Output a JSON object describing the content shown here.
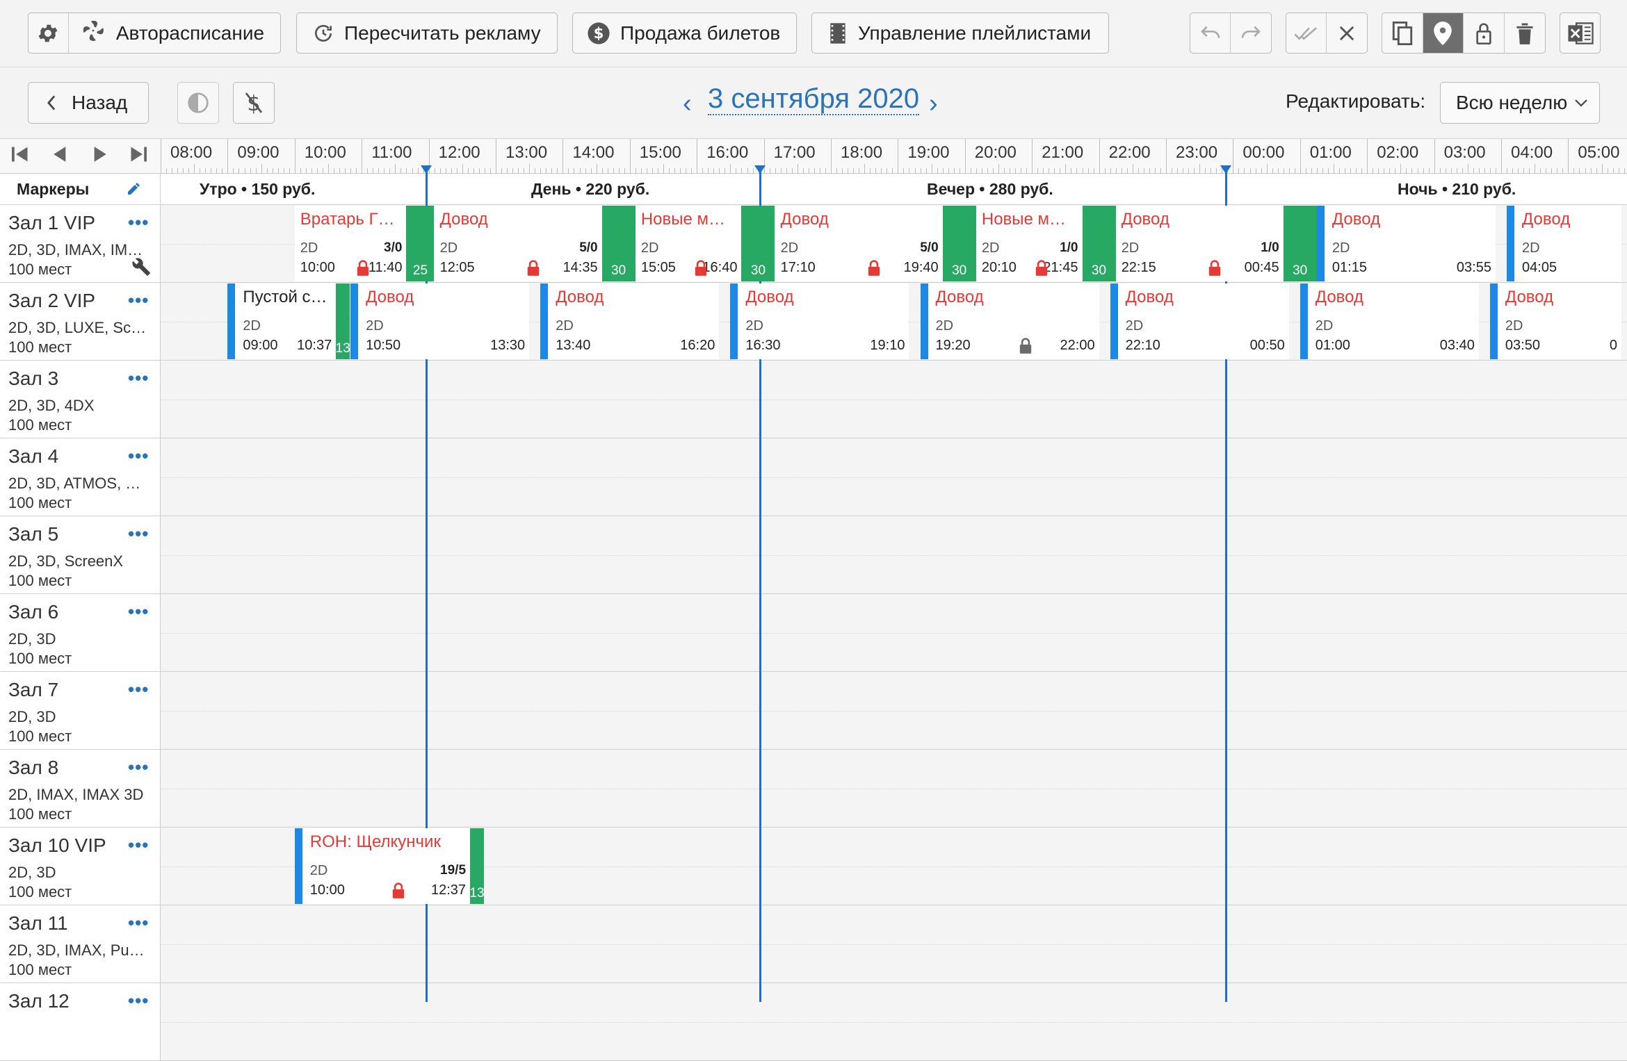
{
  "toolbar": {
    "auto_label": "Авторасписание",
    "ads_label": "Пересчитать рекламу",
    "tickets_label": "Продажа билетов",
    "playlists_label": "Управление плейлистами"
  },
  "nav": {
    "back_label": "Назад",
    "date": "3 сентября 2020",
    "edit_label": "Редактировать:",
    "edit_value": "Всю неделю"
  },
  "hours": [
    "08:00",
    "09:00",
    "10:00",
    "11:00",
    "12:00",
    "13:00",
    "14:00",
    "15:00",
    "16:00",
    "17:00",
    "18:00",
    "19:00",
    "20:00",
    "21:00",
    "22:00",
    "23:00",
    "00:00",
    "01:00",
    "02:00",
    "03:00",
    "04:00",
    "05:00"
  ],
  "markers_label": "Маркеры",
  "periods": [
    {
      "label": "Утро • 150 руб."
    },
    {
      "label": "День • 220 руб."
    },
    {
      "label": "Вечер • 280 руб."
    },
    {
      "label": "Ночь • 210 руб."
    }
  ],
  "halls": [
    {
      "name": "Зал 1 VIP",
      "formats": "2D, 3D, IMAX, IM…",
      "seats": "100 мест",
      "wrench": true
    },
    {
      "name": "Зал 2 VIP",
      "formats": "2D, 3D, LUXE, Sc…",
      "seats": "100 мест"
    },
    {
      "name": "Зал 3",
      "formats": "2D, 3D, 4DX",
      "seats": "100 мест"
    },
    {
      "name": "Зал 4",
      "formats": "2D, 3D, ATMOS, …",
      "seats": "100 мест"
    },
    {
      "name": "Зал 5",
      "formats": "2D, 3D, ScreenX",
      "seats": "100 мест"
    },
    {
      "name": "Зал 6",
      "formats": "2D, 3D",
      "seats": "100 мест"
    },
    {
      "name": "Зал 7",
      "formats": "2D, 3D",
      "seats": "100 мест"
    },
    {
      "name": "Зал 8",
      "formats": "2D, IMAX, IMAX 3D",
      "seats": "100 мест"
    },
    {
      "name": "Зал 10 VIP",
      "formats": "2D, 3D",
      "seats": "100 мест"
    },
    {
      "name": "Зал 11",
      "formats": "2D, 3D, IMAX, Pu…",
      "seats": "100 мест"
    },
    {
      "name": "Зал 12",
      "formats": "",
      "seats": ""
    }
  ],
  "sessions": [
    {
      "row": 0,
      "title": "Вратарь Г…",
      "fmt": "2D",
      "start": "10:00",
      "end": "11:40",
      "ratio": "3/0",
      "lock": "red",
      "gap": "25"
    },
    {
      "row": 0,
      "title": "Довод",
      "fmt": "2D",
      "start": "12:05",
      "end": "14:35",
      "ratio": "5/0",
      "lock": "red",
      "gap": "30"
    },
    {
      "row": 0,
      "title": "Новые м…",
      "fmt": "2D",
      "start": "15:05",
      "end": "16:40",
      "lock": "red",
      "gap": "30"
    },
    {
      "row": 0,
      "title": "Довод",
      "fmt": "2D",
      "start": "17:10",
      "end": "19:40",
      "ratio": "5/0",
      "lock": "red",
      "gap": "30"
    },
    {
      "row": 0,
      "title": "Новые м…",
      "fmt": "2D",
      "start": "20:10",
      "end": "21:45",
      "ratio": "1/0",
      "lock": "red",
      "gap": "30"
    },
    {
      "row": 0,
      "title": "Довод",
      "fmt": "2D",
      "start": "22:15",
      "end": "00:45",
      "ratio": "1/0",
      "lock": "red",
      "gap": "30"
    },
    {
      "row": 0,
      "title": "Довод",
      "fmt": "2D",
      "start": "01:15",
      "end": "03:55"
    },
    {
      "row": 0,
      "title": "Довод",
      "fmt": "2D",
      "start": "04:05",
      "end": ""
    },
    {
      "row": 1,
      "title": "Пустой с…",
      "fmt": "2D",
      "start": "09:00",
      "end": "10:37",
      "black": true,
      "gap": "13"
    },
    {
      "row": 1,
      "title": "Довод",
      "fmt": "2D",
      "start": "10:50",
      "end": "13:30"
    },
    {
      "row": 1,
      "title": "Довод",
      "fmt": "2D",
      "start": "13:40",
      "end": "16:20"
    },
    {
      "row": 1,
      "title": "Довод",
      "fmt": "2D",
      "start": "16:30",
      "end": "19:10"
    },
    {
      "row": 1,
      "title": "Довод",
      "fmt": "2D",
      "start": "19:20",
      "end": "22:00",
      "lock": "grey"
    },
    {
      "row": 1,
      "title": "Довод",
      "fmt": "2D",
      "start": "22:10",
      "end": "00:50"
    },
    {
      "row": 1,
      "title": "Довод",
      "fmt": "2D",
      "start": "01:00",
      "end": "03:40"
    },
    {
      "row": 1,
      "title": "Довод",
      "fmt": "2D",
      "start": "03:50",
      "end": "0"
    },
    {
      "row": 8,
      "title": "ROH: Щелкунчик",
      "fmt": "2D",
      "start": "10:00",
      "end": "12:37",
      "ratio": "19/5",
      "lock": "red",
      "gap": "13"
    }
  ],
  "colors": {
    "accent": "#2a73b8",
    "now_line": "#1e6fc7",
    "gap": "#27a863",
    "title_red": "#e53935",
    "blue_marker": "#1e88e5"
  }
}
